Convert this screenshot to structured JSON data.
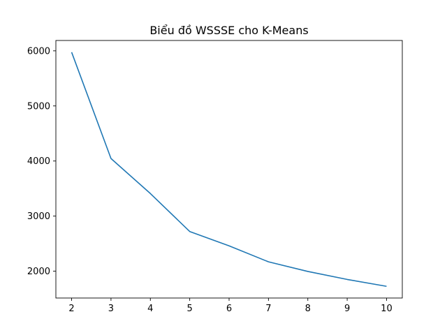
{
  "chart_data": {
    "type": "line",
    "title": "Biểu đồ WSSSE cho K-Means",
    "xlabel": "",
    "ylabel": "",
    "x": [
      2,
      3,
      4,
      5,
      6,
      7,
      8,
      9,
      10
    ],
    "series": [
      {
        "values": [
          5975,
          4045,
          3410,
          2720,
          2460,
          2170,
          1995,
          1850,
          1725
        ],
        "color": "#1f77b4"
      }
    ],
    "xticks": [
      2,
      3,
      4,
      5,
      6,
      7,
      8,
      9,
      10
    ],
    "yticks": [
      2000,
      3000,
      4000,
      5000,
      6000
    ],
    "xlim": [
      1.6,
      10.4
    ],
    "ylim": [
      1513,
      6188
    ],
    "grid": false,
    "legend": "none"
  }
}
